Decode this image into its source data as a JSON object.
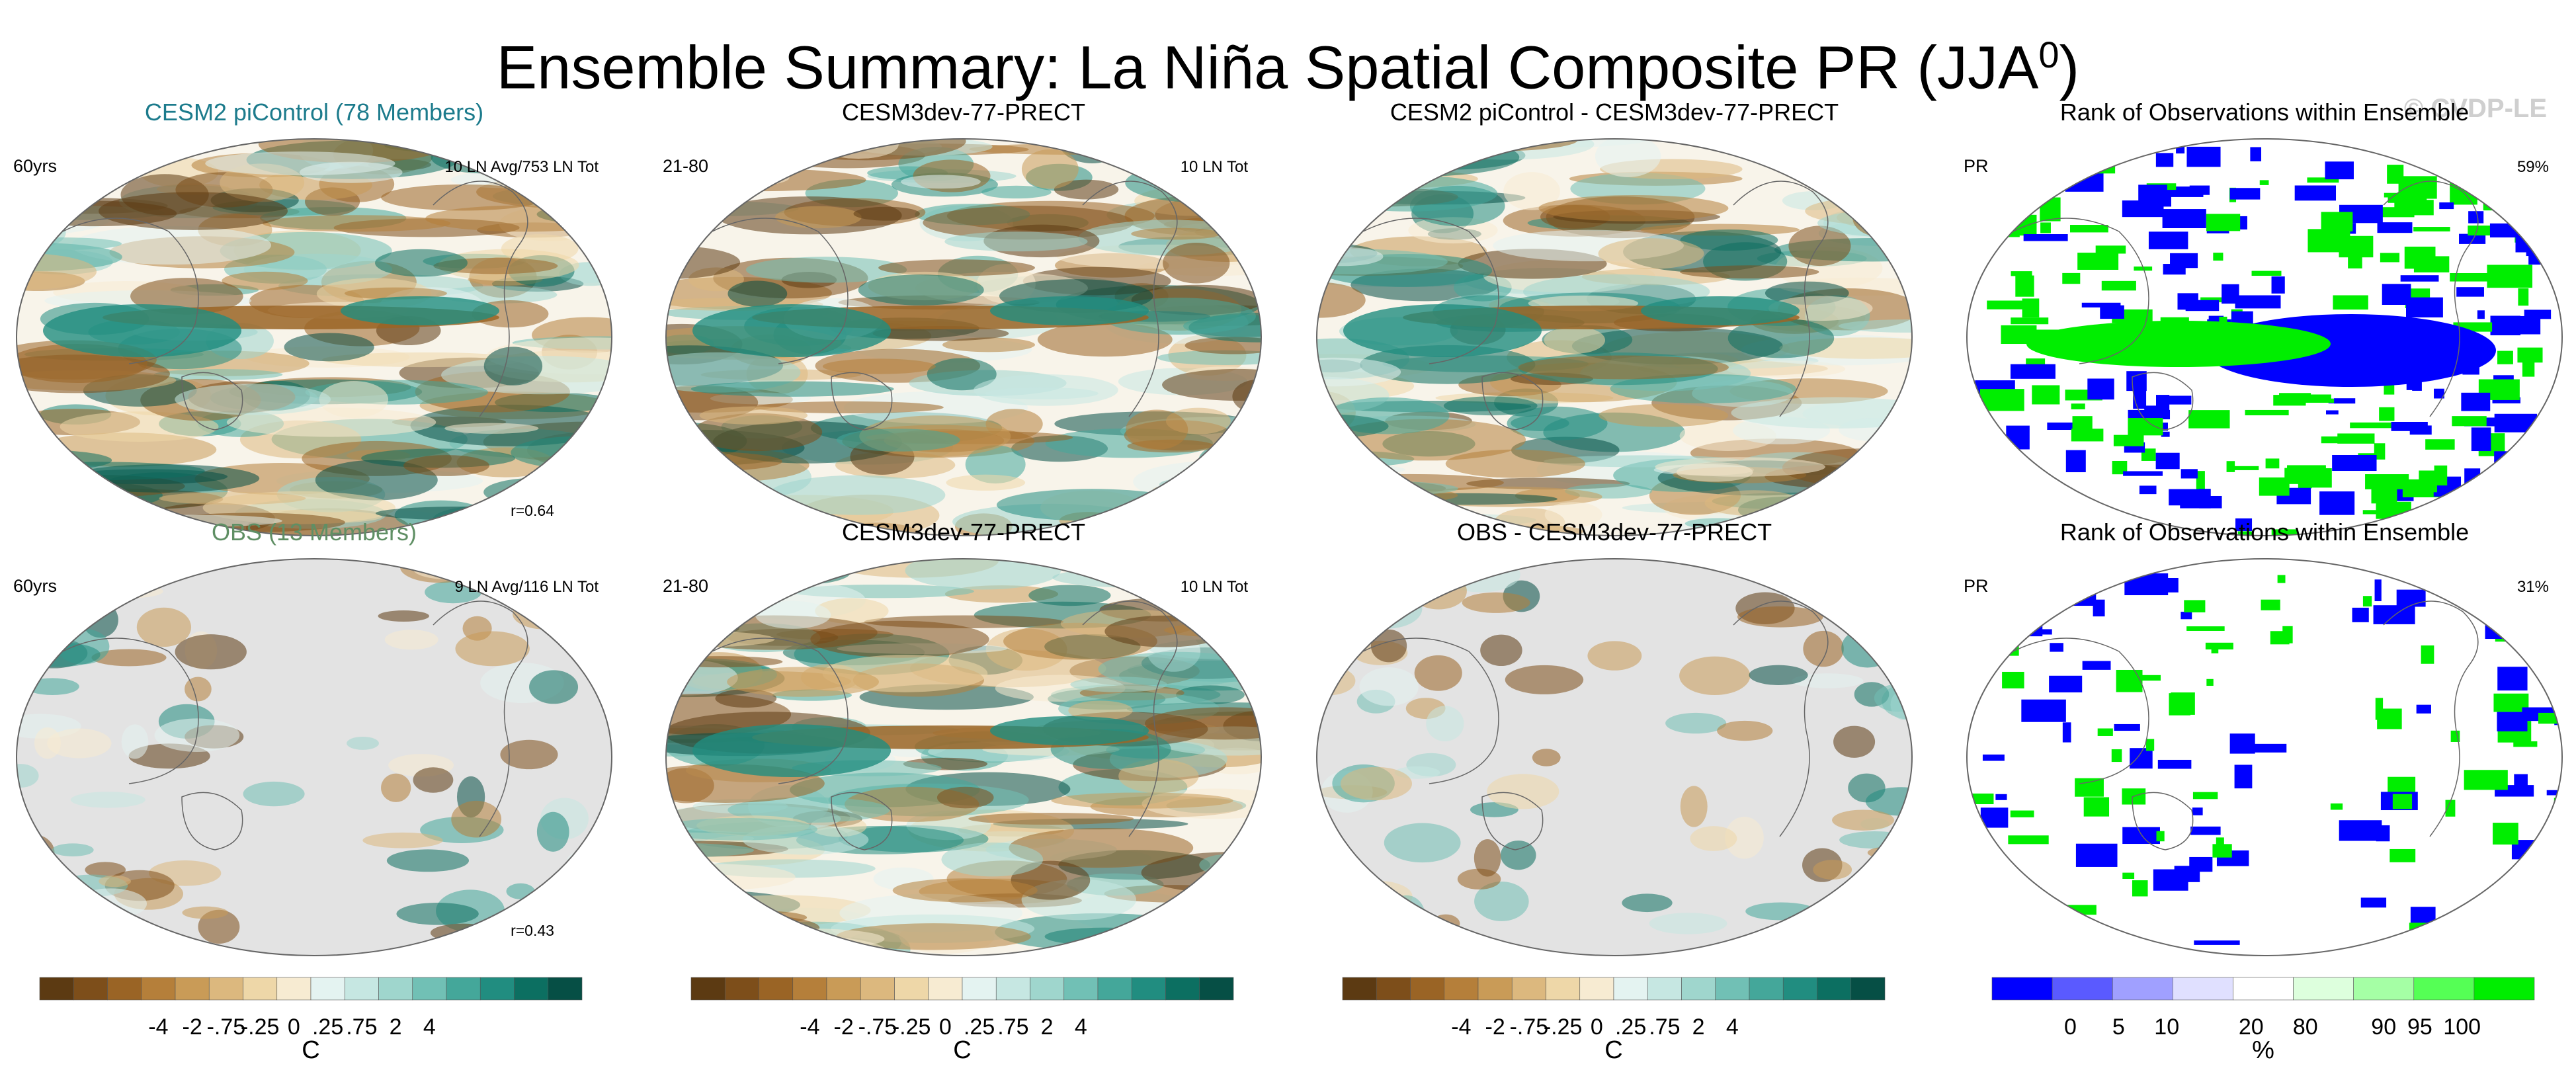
{
  "title": {
    "prefix": "Ensemble Summary: La Niña Spatial Composite PR (JJA",
    "sup": "0",
    "suffix": ")"
  },
  "watermark": "© CVDP-LE",
  "colors": {
    "brown_scale": [
      "#5c3a12",
      "#7d4e1a",
      "#9a6425",
      "#b57f3a",
      "#c99b57",
      "#dcb87e",
      "#eed7a8",
      "#f7ebd2"
    ],
    "teal_scale": [
      "#e4f3f1",
      "#c6e7e2",
      "#9fd6cd",
      "#71c0b5",
      "#44a79a",
      "#218d80",
      "#0c6f61",
      "#064f45"
    ],
    "rank_scale": [
      "#0000ff",
      "#5a5aff",
      "#a0a0ff",
      "#e0e0ff",
      "#ffffff",
      "#ddffdd",
      "#a5ffa5",
      "#55ff55",
      "#00ee00"
    ],
    "land_gray": "#e3e3e3",
    "title_teal": "#1c7b8c",
    "title_green": "#5f8f64"
  },
  "chart_data": [
    {
      "type": "heatmap",
      "panel": "row1-col1",
      "title": "CESM2 piControl (78 Members)",
      "left_label": "60yrs",
      "right_label": "10 LN Avg/753 LN Tot",
      "annotation": "r=0.64"
    },
    {
      "type": "heatmap",
      "panel": "row1-col2",
      "title": "CESM3dev-77-PRECT",
      "left_label": "21-80",
      "right_label": "10 LN Tot"
    },
    {
      "type": "heatmap",
      "panel": "row1-col3",
      "title": "CESM2 piControl - CESM3dev-77-PRECT"
    },
    {
      "type": "heatmap",
      "panel": "row1-col4",
      "title": "Rank of Observations within Ensemble",
      "left_label": "PR",
      "right_label": "59%"
    },
    {
      "type": "heatmap",
      "panel": "row2-col1",
      "title": "OBS (13 Members)",
      "left_label": "60yrs",
      "right_label": "9 LN Avg/116 LN Tot",
      "annotation": "r=0.43"
    },
    {
      "type": "heatmap",
      "panel": "row2-col2",
      "title": "CESM3dev-77-PRECT",
      "left_label": "21-80",
      "right_label": "10 LN Tot"
    },
    {
      "type": "heatmap",
      "panel": "row2-col3",
      "title": "OBS - CESM3dev-77-PRECT"
    },
    {
      "type": "heatmap",
      "panel": "row2-col4",
      "title": "Rank of Observations within Ensemble",
      "left_label": "PR",
      "right_label": "31%"
    }
  ],
  "colorbars": [
    {
      "ticks": [
        "-4",
        "-2",
        "-.75",
        "-.25",
        "0",
        ".25",
        ".75",
        "2",
        "4"
      ],
      "unit": "C"
    },
    {
      "ticks": [
        "-4",
        "-2",
        "-.75",
        "-.25",
        "0",
        ".25",
        ".75",
        "2",
        "4"
      ],
      "unit": "C"
    },
    {
      "ticks": [
        "-4",
        "-2",
        "-.75",
        "-.25",
        "0",
        ".25",
        ".75",
        "2",
        "4"
      ],
      "unit": "C"
    },
    {
      "ticks": [
        "0",
        "5",
        "10",
        "20",
        "80",
        "90",
        "95",
        "100"
      ],
      "unit": "%"
    }
  ]
}
